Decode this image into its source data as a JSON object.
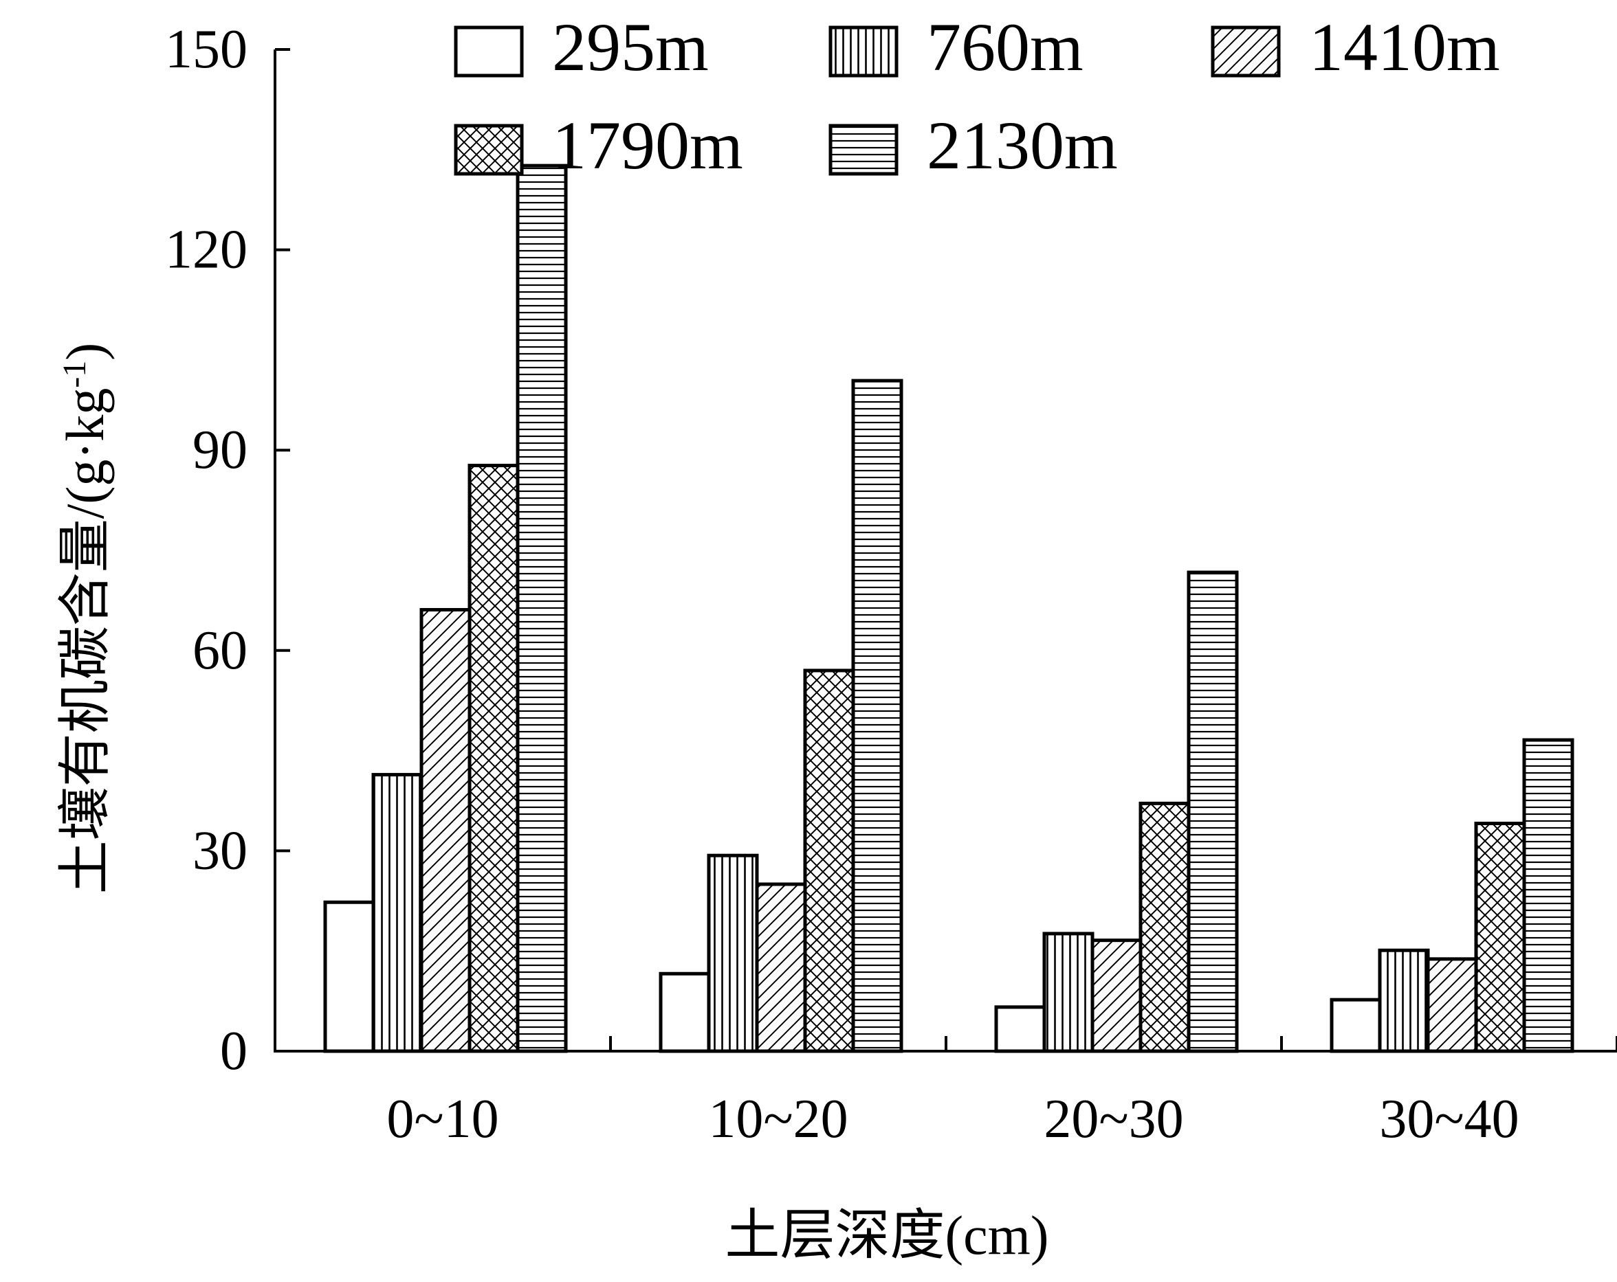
{
  "chart_data": {
    "type": "bar",
    "title": "",
    "ylabel": "土壤有机碳含量/(g·kg",
    "ylabel_sup": "-1",
    "ylabel_tail": ")",
    "xlabel": "土层深度(cm)",
    "ylim": [
      0,
      150
    ],
    "yticks": [
      "0",
      "30",
      "60",
      "90",
      "120",
      "150"
    ],
    "grid": false,
    "legend_position": "top",
    "categories": [
      "0~10",
      "10~20",
      "20~30",
      "30~40"
    ],
    "series": [
      {
        "name": "295m",
        "pattern": "none",
        "values": [
          22.3,
          11.6,
          6.6,
          7.7
        ]
      },
      {
        "name": "760m",
        "pattern": "vertical",
        "values": [
          41.4,
          29.3,
          17.6,
          15.1
        ]
      },
      {
        "name": "1410m",
        "pattern": "diagonal",
        "values": [
          66.1,
          25.0,
          16.6,
          13.8
        ]
      },
      {
        "name": "1790m",
        "pattern": "crosshatch",
        "values": [
          87.7,
          57.0,
          37.1,
          34.1
        ]
      },
      {
        "name": "2130m",
        "pattern": "horizontal",
        "values": [
          132.6,
          100.4,
          71.7,
          46.6
        ]
      }
    ]
  }
}
